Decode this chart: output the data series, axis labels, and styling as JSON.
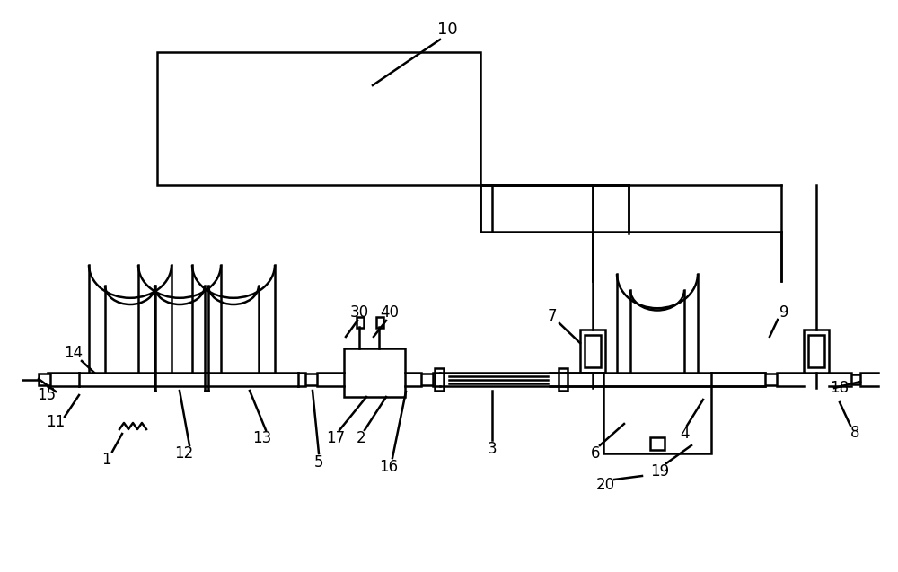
{
  "bg": "#ffffff",
  "lc": "#000000",
  "lw": 1.8
}
